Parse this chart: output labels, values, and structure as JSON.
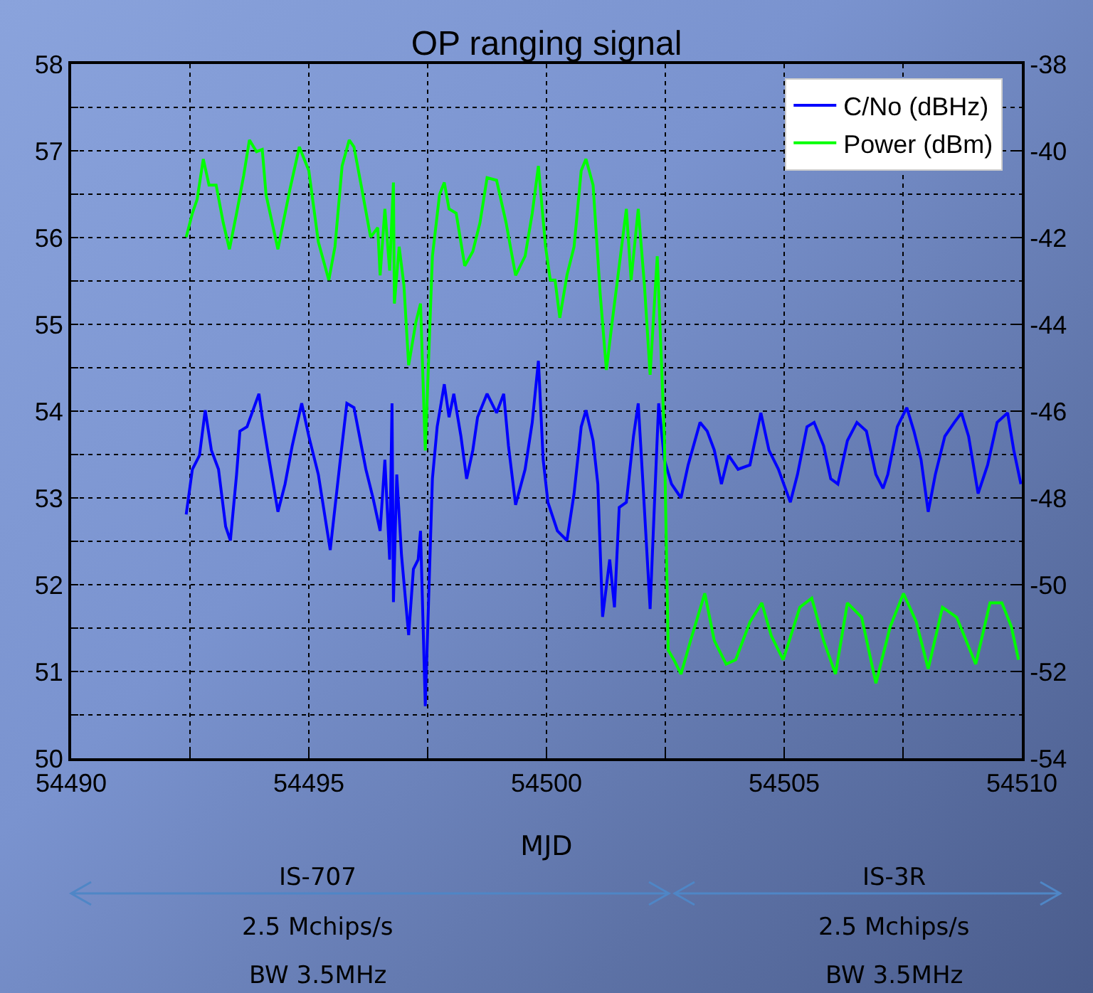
{
  "chart_data": {
    "type": "line",
    "title": "OP ranging signal",
    "xlabel": "MJD",
    "xlim": [
      54490,
      54510
    ],
    "xticks": [
      54490,
      {
        "value": 54492.5,
        "label": null
      },
      54495,
      {
        "value": 54497.5,
        "label": null
      },
      54500,
      {
        "value": 54502.5,
        "label": null
      },
      54505,
      {
        "value": 54507.5,
        "label": null
      },
      54510
    ],
    "ylim": [
      50,
      58
    ],
    "yticks": [
      50,
      {
        "value": 50.5,
        "label": null
      },
      51,
      {
        "value": 51.5,
        "label": null
      },
      52,
      {
        "value": 52.5,
        "label": null
      },
      53,
      {
        "value": 53.5,
        "label": null
      },
      54,
      {
        "value": 54.5,
        "label": null
      },
      55,
      {
        "value": 55.5,
        "label": null
      },
      56,
      {
        "value": 56.5,
        "label": null
      },
      57,
      {
        "value": 57.5,
        "label": null
      },
      58
    ],
    "y2lim": [
      -54,
      -38
    ],
    "y2ticks": [
      -54,
      -52,
      -50,
      -48,
      -46,
      -44,
      -42,
      -40,
      -38
    ],
    "grid": true,
    "legend": "top right",
    "annotations": [
      "IS-707",
      "2.5 Mchips/s",
      "BW 3.5MHz",
      "IS-3R",
      "2.5 Mchips/s",
      "BW 3.5MHz"
    ],
    "series": [
      {
        "name": "C/No (dBHz)",
        "color": "#0000ff",
        "x": [
          54492.42,
          54492.55,
          54492.7,
          54492.82,
          54492.95,
          54493.1,
          54493.25,
          54493.35,
          54493.48,
          54493.55,
          54493.7,
          54493.95,
          54494.02,
          54494.15,
          54494.35,
          54494.5,
          54494.65,
          54494.85,
          54495,
          54495.2,
          54495.45,
          54495.65,
          54495.8,
          54495.95,
          54496.2,
          54496.35,
          54496.5,
          54496.6,
          54496.7,
          54496.75,
          54496.78,
          54496.85,
          54496.95,
          54497.1,
          54497.2,
          54497.3,
          54497.35,
          54497.45,
          54497.6,
          54497.7,
          54497.85,
          54497.95,
          54498.05,
          54498.2,
          54498.32,
          54498.45,
          54498.55,
          54498.75,
          54498.95,
          54499.1,
          54499.2,
          54499.35,
          54499.55,
          54499.7,
          54499.83,
          54499.93,
          54500.03,
          54500.23,
          54500.43,
          54500.58,
          54500.73,
          54500.83,
          54500.98,
          54501.08,
          54501.18,
          54501.33,
          54501.43,
          54501.53,
          54501.68,
          54501.83,
          54501.93,
          54502.03,
          54502.18,
          54502.28,
          54502.36,
          54502.48,
          54502.63,
          54502.83,
          54502.98,
          54503.23,
          54503.38,
          54503.53,
          54503.68,
          54503.83,
          54504.03,
          54504.28,
          54504.51,
          54504.68,
          54504.88,
          54505.13,
          54505.28,
          54505.48,
          54505.63,
          54505.83,
          54505.98,
          54506.13,
          54506.33,
          54506.53,
          54506.73,
          54506.93,
          54507.08,
          54507.18,
          54507.38,
          54507.58,
          54507.73,
          54507.88,
          54508.03,
          54508.18,
          54508.38,
          54508.58,
          54508.73,
          54508.88,
          54509.08,
          54509.28,
          54509.48,
          54509.7,
          54509.83,
          54509.98
        ],
        "values": [
          52.81,
          53.33,
          53.49,
          54.01,
          53.55,
          53.33,
          52.67,
          52.51,
          53.27,
          53.77,
          53.82,
          54.2,
          53.93,
          53.49,
          52.84,
          53.16,
          53.6,
          54.09,
          53.71,
          53.27,
          52.4,
          53.38,
          54.09,
          54.04,
          53.33,
          53.0,
          52.62,
          53.44,
          52.29,
          54.09,
          51.8,
          53.27,
          52.34,
          51.42,
          52.18,
          52.29,
          52.62,
          50.6,
          53.22,
          53.82,
          54.31,
          53.93,
          54.2,
          53.71,
          53.22,
          53.55,
          53.93,
          54.2,
          53.98,
          54.2,
          53.6,
          52.92,
          53.33,
          53.87,
          54.58,
          53.44,
          52.95,
          52.62,
          52.51,
          53.05,
          53.82,
          54.01,
          53.66,
          53.16,
          51.63,
          52.29,
          51.74,
          52.89,
          52.95,
          53.71,
          54.09,
          53.16,
          51.72,
          53.05,
          54.09,
          53.44,
          53.16,
          53.0,
          53.38,
          53.87,
          53.77,
          53.55,
          53.16,
          53.49,
          53.33,
          53.38,
          53.98,
          53.55,
          53.33,
          52.95,
          53.27,
          53.82,
          53.87,
          53.6,
          53.22,
          53.16,
          53.66,
          53.87,
          53.77,
          53.27,
          53.11,
          53.27,
          53.82,
          54.04,
          53.77,
          53.44,
          52.84,
          53.27,
          53.71,
          53.87,
          53.98,
          53.71,
          53.05,
          53.38,
          53.87,
          53.98,
          53.55,
          53.16
        ]
      },
      {
        "name": "Power (dBm)",
        "color": "#00ff00",
        "axis": "y2",
        "x": [
          54492.42,
          54492.55,
          54492.65,
          54492.78,
          54492.9,
          54493.05,
          54493.2,
          54493.33,
          54493.48,
          54493.63,
          54493.75,
          54493.9,
          54494.02,
          54494.1,
          54494.35,
          54494.6,
          54494.8,
          54495,
          54495.2,
          54495.42,
          54495.55,
          54495.7,
          54495.85,
          54495.95,
          54496.1,
          54496.3,
          54496.45,
          54496.5,
          54496.6,
          54496.7,
          54496.78,
          54496.8,
          54496.9,
          54497,
          54497.1,
          54497.25,
          54497.35,
          54497.45,
          54497.6,
          54497.75,
          54497.85,
          54497.95,
          54498.1,
          54498.28,
          54498.45,
          54498.6,
          54498.75,
          54498.95,
          54499.15,
          54499.35,
          54499.55,
          54499.7,
          54499.83,
          54499.98,
          54500.08,
          54500.18,
          54500.28,
          54500.43,
          54500.58,
          54500.73,
          54500.83,
          54500.98,
          54501.13,
          54501.26,
          54501.38,
          54501.53,
          54501.68,
          54501.78,
          54501.93,
          54502.06,
          54502.18,
          54502.33,
          54502.48,
          54502.56,
          54502.68,
          54502.83,
          54503.03,
          54503.33,
          54503.53,
          54503.78,
          54503.98,
          54504.28,
          54504.53,
          54504.73,
          54504.98,
          54505.33,
          54505.58,
          54505.83,
          54506.08,
          54506.33,
          54506.63,
          54506.93,
          54507.23,
          54507.51,
          54507.78,
          54508.03,
          54508.33,
          54508.63,
          54509.03,
          54509.33,
          54509.58,
          54509.78,
          54509.93
        ],
        "values": [
          -41.99,
          -41.44,
          -41.12,
          -40.19,
          -40.79,
          -40.79,
          -41.66,
          -42.27,
          -41.44,
          -40.57,
          -39.75,
          -40.02,
          -39.97,
          -41.01,
          -42.27,
          -40.9,
          -39.91,
          -40.46,
          -42.1,
          -42.98,
          -42.21,
          -40.35,
          -39.75,
          -39.91,
          -40.79,
          -41.99,
          -41.77,
          -42.87,
          -41.34,
          -42.76,
          -40.73,
          -43.52,
          -42.21,
          -43.09,
          -44.94,
          -43.96,
          -43.52,
          -46.91,
          -42.43,
          -41.01,
          -40.73,
          -41.34,
          -41.44,
          -42.65,
          -42.32,
          -41.66,
          -40.62,
          -40.68,
          -41.66,
          -42.87,
          -42.43,
          -41.44,
          -40.35,
          -42.21,
          -42.98,
          -42.98,
          -43.85,
          -42.87,
          -42.21,
          -40.46,
          -40.19,
          -40.79,
          -43.3,
          -45.05,
          -43.96,
          -42.65,
          -41.34,
          -42.98,
          -41.34,
          -43.09,
          -45.16,
          -42.43,
          -46.58,
          -51.51,
          -51.73,
          -52.06,
          -51.29,
          -50.2,
          -51.29,
          -51.83,
          -51.73,
          -50.86,
          -50.42,
          -51.18,
          -51.73,
          -50.52,
          -50.31,
          -51.29,
          -52.06,
          -50.42,
          -50.75,
          -52.27,
          -50.97,
          -50.2,
          -50.86,
          -51.94,
          -50.52,
          -50.75,
          -51.83,
          -50.42,
          -50.42,
          -50.97,
          -51.73
        ]
      }
    ]
  }
}
